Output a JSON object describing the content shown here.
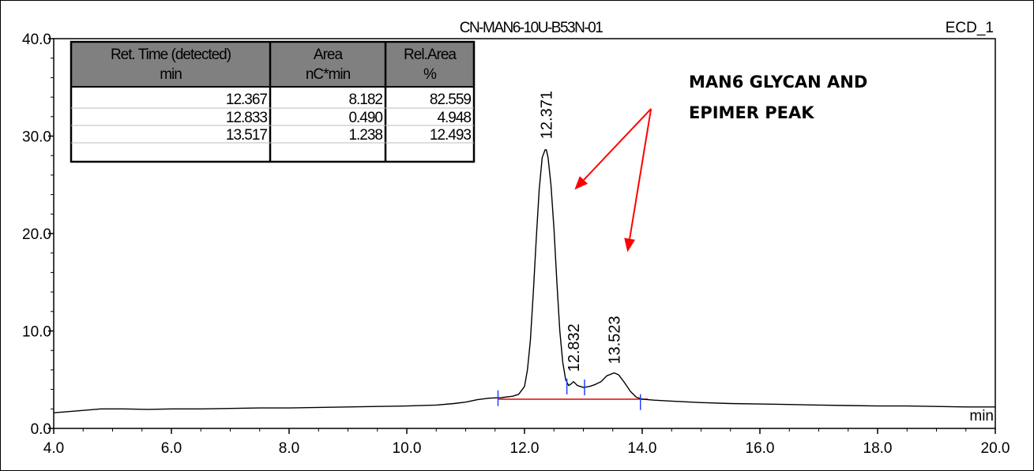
{
  "chart_data": {
    "type": "line",
    "title": "CN-MAN6-10U-B53N-01",
    "channel": "ECD_1",
    "xlabel": "min",
    "ylabel": "",
    "xlim": [
      4.0,
      20.0
    ],
    "ylim": [
      0.0,
      40.0
    ],
    "x_ticks": [
      "4.0",
      "6.0",
      "8.0",
      "10.0",
      "12.0",
      "14.0",
      "16.0",
      "18.0",
      "20.0"
    ],
    "y_ticks": [
      "0.0",
      "10.0",
      "20.0",
      "30.0",
      "40.0"
    ],
    "grid": false,
    "series": [
      {
        "x": [
          4.0,
          4.4,
          4.8,
          5.2,
          5.6,
          6.0,
          6.5,
          7.0,
          7.5,
          8.0,
          8.5,
          9.0,
          9.5,
          10.0,
          10.5,
          10.8,
          11.0,
          11.2,
          11.4,
          11.6,
          11.8,
          11.9,
          12.0,
          12.05,
          12.1,
          12.15,
          12.2,
          12.25,
          12.3,
          12.35,
          12.371,
          12.4,
          12.45,
          12.5,
          12.55,
          12.6,
          12.65,
          12.7,
          12.75,
          12.8,
          12.832,
          12.9,
          13.0,
          13.1,
          13.2,
          13.3,
          13.4,
          13.523,
          13.6,
          13.7,
          13.8,
          13.9,
          14.0,
          14.2,
          14.5,
          15.0,
          15.5,
          16.0,
          16.5,
          17.0,
          17.5,
          18.0,
          18.5,
          19.0,
          19.5,
          20.0
        ],
        "values": [
          1.6,
          1.8,
          2.0,
          2.0,
          1.95,
          2.0,
          2.0,
          2.05,
          2.1,
          2.1,
          2.15,
          2.2,
          2.25,
          2.3,
          2.4,
          2.55,
          2.7,
          2.95,
          3.1,
          3.15,
          3.3,
          3.5,
          4.3,
          6.0,
          9.0,
          14.0,
          19.5,
          24.5,
          27.8,
          28.6,
          28.6,
          27.8,
          25.0,
          20.5,
          15.0,
          10.0,
          6.8,
          5.0,
          4.4,
          4.6,
          4.8,
          4.4,
          4.2,
          4.3,
          4.5,
          4.8,
          5.4,
          5.7,
          5.5,
          4.7,
          3.8,
          3.2,
          3.0,
          2.9,
          2.8,
          2.65,
          2.55,
          2.5,
          2.45,
          2.4,
          2.35,
          2.3,
          2.3,
          2.25,
          2.2,
          2.2
        ],
        "color": "#000000"
      }
    ],
    "baseline": {
      "x": [
        11.55,
        14.1
      ],
      "values": [
        3.0,
        3.0
      ],
      "color": "#e00000"
    },
    "peak_markers": [
      {
        "x": 11.55,
        "y": 3.1
      },
      {
        "x": 12.72,
        "y": 4.3
      },
      {
        "x": 13.02,
        "y": 4.2
      },
      {
        "x": 13.97,
        "y": 2.7
      }
    ],
    "peak_labels": [
      "12.371",
      "12.832",
      "13.523"
    ],
    "peak_label_positions": [
      {
        "x": 12.371,
        "y": 29.7
      },
      {
        "x": 12.832,
        "y": 5.8
      },
      {
        "x": 13.523,
        "y": 6.6
      }
    ],
    "table": {
      "headers": [
        [
          "Ret. Time (detected)",
          "min"
        ],
        [
          "Area",
          "nC*min"
        ],
        [
          "Rel.Area",
          "%"
        ]
      ],
      "rows": [
        [
          "12.367",
          "8.182",
          "82.559"
        ],
        [
          "12.833",
          "0.490",
          "4.948"
        ],
        [
          "13.517",
          "1.238",
          "12.493"
        ]
      ]
    },
    "annotation": {
      "lines": [
        "MAN6 GLYCAN AND",
        "EPIMER PEAK"
      ],
      "arrow_color": "#ff0000",
      "arrow_targets": [
        {
          "x": 12.85,
          "y": 24.5
        },
        {
          "x": 13.75,
          "y": 18.1
        }
      ],
      "arrow_origin": {
        "x": 14.15,
        "y": 32.8
      }
    }
  }
}
